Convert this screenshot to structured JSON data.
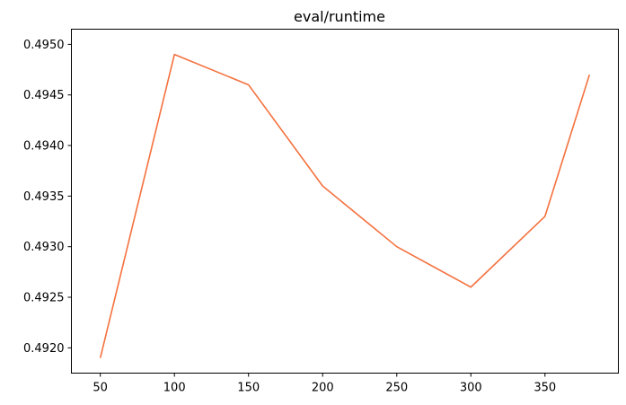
{
  "chart_data": {
    "type": "line",
    "title": "eval/runtime",
    "xlabel": "",
    "ylabel": "",
    "x": [
      50,
      100,
      150,
      200,
      250,
      300,
      350,
      380
    ],
    "series": [
      {
        "values": [
          0.4919,
          0.4949,
          0.4946,
          0.4936,
          0.493,
          0.4926,
          0.4933,
          0.4947
        ],
        "color": "#f4713e"
      }
    ],
    "xlim": [
      30.5,
      399.5
    ],
    "ylim": [
      0.49175,
      0.49515
    ],
    "x_ticks": [
      "50",
      "100",
      "150",
      "200",
      "250",
      "300",
      "350"
    ],
    "y_ticks": [
      "0.4920",
      "0.4925",
      "0.4930",
      "0.4935",
      "0.4940",
      "0.4945",
      "0.4950"
    ],
    "grid": false,
    "legend": "none"
  }
}
